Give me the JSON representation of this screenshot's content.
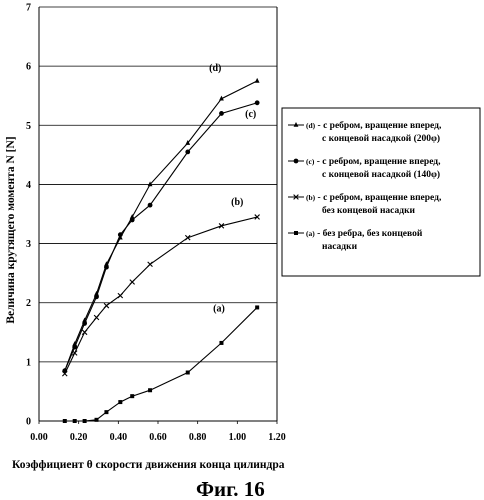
{
  "figure_label": "Фиг. 16",
  "chart_data": {
    "type": "line",
    "xlabel": "Коэффициент θ скорости движения конца цилиндра",
    "ylabel": "Величина крутящего момента N [N]",
    "xlim": [
      0.0,
      1.2
    ],
    "ylim": [
      0,
      7
    ],
    "xticks": [
      "0.00",
      "0.20",
      "0.40",
      "0.60",
      "0.80",
      "1.00",
      "1.20"
    ],
    "yticks": [
      "0",
      "1",
      "2",
      "3",
      "4",
      "5",
      "6",
      "7"
    ],
    "grid": "horizontal",
    "legend_position": "right",
    "series": [
      {
        "tag": "(d)",
        "legend_tag": "(d)",
        "legend": [
          "- с ребром, вращение вперед,",
          "с концевой насадкой (200φ)"
        ],
        "marker": "triangle",
        "x": [
          0.13,
          0.18,
          0.23,
          0.29,
          0.34,
          0.41,
          0.47,
          0.56,
          0.75,
          0.92,
          1.1
        ],
        "y": [
          0.85,
          1.3,
          1.7,
          2.15,
          2.65,
          3.1,
          3.45,
          4.0,
          4.7,
          5.45,
          5.75
        ]
      },
      {
        "tag": "(c)",
        "legend_tag": "(c)",
        "legend": [
          "- с ребром, вращение вперед,",
          "с концевой насадкой (140φ)"
        ],
        "marker": "circle",
        "x": [
          0.13,
          0.18,
          0.23,
          0.29,
          0.34,
          0.41,
          0.47,
          0.56,
          0.75,
          0.92,
          1.1
        ],
        "y": [
          0.85,
          1.25,
          1.65,
          2.1,
          2.6,
          3.15,
          3.4,
          3.65,
          4.55,
          5.2,
          5.38
        ]
      },
      {
        "tag": "(b)",
        "legend_tag": "(b)",
        "legend": [
          "- с ребром, вращение вперед,",
          "без концевой насадки"
        ],
        "marker": "x",
        "x": [
          0.13,
          0.18,
          0.23,
          0.29,
          0.34,
          0.41,
          0.47,
          0.56,
          0.75,
          0.92,
          1.1
        ],
        "y": [
          0.8,
          1.15,
          1.5,
          1.75,
          1.95,
          2.12,
          2.35,
          2.65,
          3.1,
          3.3,
          3.45
        ]
      },
      {
        "tag": "(a)",
        "legend_tag": "(a)",
        "legend": [
          "- без ребра, без концевой",
          "насадки"
        ],
        "marker": "square",
        "x": [
          0.13,
          0.18,
          0.23,
          0.29,
          0.34,
          0.41,
          0.47,
          0.56,
          0.75,
          0.92,
          1.1
        ],
        "y": [
          0.0,
          0.0,
          0.0,
          0.02,
          0.15,
          0.32,
          0.42,
          0.52,
          0.82,
          1.32,
          1.92
        ]
      }
    ]
  }
}
